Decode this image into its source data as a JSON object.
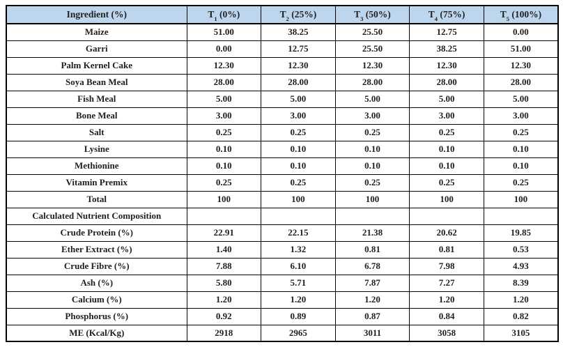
{
  "colors": {
    "header_bg": "#bdd6ee",
    "border": "#000000",
    "text": "#1f1f1f",
    "page_bg": "#ffffff"
  },
  "table": {
    "columns": {
      "ingredient_header": "Ingredient (%)",
      "treatments": [
        {
          "symbol": "T",
          "subscript": "1",
          "level": "(0%)"
        },
        {
          "symbol": "T",
          "subscript": "2",
          "level": "(25%)"
        },
        {
          "symbol": "T",
          "subscript": "3",
          "level": "(50%)"
        },
        {
          "symbol": "T",
          "subscript": "4",
          "level": "(75%)"
        },
        {
          "symbol": "T",
          "subscript": "5",
          "level": "(100%)"
        }
      ]
    },
    "rows": [
      {
        "label": "Maize",
        "values": [
          "51.00",
          "38.25",
          "25.50",
          "12.75",
          "0.00"
        ]
      },
      {
        "label": "Garri",
        "values": [
          "0.00",
          "12.75",
          "25.50",
          "38.25",
          "51.00"
        ]
      },
      {
        "label": "Palm Kernel Cake",
        "values": [
          "12.30",
          "12.30",
          "12.30",
          "12.30",
          "12.30"
        ]
      },
      {
        "label": "Soya Bean Meal",
        "values": [
          "28.00",
          "28.00",
          "28.00",
          "28.00",
          "28.00"
        ]
      },
      {
        "label": "Fish Meal",
        "values": [
          "5.00",
          "5.00",
          "5.00",
          "5.00",
          "5.00"
        ]
      },
      {
        "label": "Bone Meal",
        "values": [
          "3.00",
          "3.00",
          "3.00",
          "3.00",
          "3.00"
        ]
      },
      {
        "label": "Salt",
        "values": [
          "0.25",
          "0.25",
          "0.25",
          "0.25",
          "0.25"
        ]
      },
      {
        "label": "Lysine",
        "values": [
          "0.10",
          "0.10",
          "0.10",
          "0.10",
          "0.10"
        ]
      },
      {
        "label": "Methionine",
        "values": [
          "0.10",
          "0.10",
          "0.10",
          "0.10",
          "0.10"
        ]
      },
      {
        "label": "Vitamin Premix",
        "values": [
          "0.25",
          "0.25",
          "0.25",
          "0.25",
          "0.25"
        ]
      },
      {
        "label": "Total",
        "values": [
          "100",
          "100",
          "100",
          "100",
          "100"
        ]
      },
      {
        "label": "Calculated Nutrient Composition",
        "values": [
          "",
          "",
          "",
          "",
          ""
        ],
        "section": true
      },
      {
        "label": "Crude Protein (%)",
        "values": [
          "22.91",
          "22.15",
          "21.38",
          "20.62",
          "19.85"
        ]
      },
      {
        "label": "Ether Extract (%)",
        "values": [
          "1.40",
          "1.32",
          "0.81",
          "0.81",
          "0.53"
        ]
      },
      {
        "label": "Crude Fibre (%)",
        "values": [
          "7.88",
          "6.10",
          "6.78",
          "7.98",
          "4.93"
        ]
      },
      {
        "label": "Ash (%)",
        "values": [
          "5.80",
          "5.71",
          "7.87",
          "7.27",
          "8.39"
        ]
      },
      {
        "label": "Calcium (%)",
        "values": [
          "1.20",
          "1.20",
          "1.20",
          "1.20",
          "1.20"
        ]
      },
      {
        "label": "Phosphorus (%)",
        "values": [
          "0.92",
          "0.89",
          "0.87",
          "0.84",
          "0.82"
        ]
      },
      {
        "label": "ME (Kcal/Kg)",
        "values": [
          "2918",
          "2965",
          "3011",
          "3058",
          "3105"
        ]
      }
    ]
  }
}
